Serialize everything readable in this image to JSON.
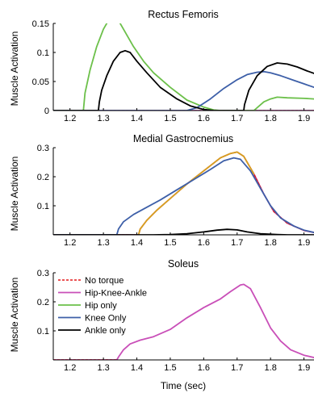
{
  "chart_data": [
    {
      "type": "line",
      "title": "Rectus Femoris",
      "xlabel": "",
      "ylabel": "Muscle Activation",
      "xlim": [
        1.15,
        1.93
      ],
      "ylim": [
        0,
        0.15
      ],
      "xticks": [
        1.2,
        1.3,
        1.4,
        1.5,
        1.6,
        1.7,
        1.8,
        1.9
      ],
      "xtick_labels": [
        "1.2",
        "1.3",
        "1.4",
        "1.5",
        "1.6",
        "1.7",
        "1.8",
        "1.9"
      ],
      "yticks": [
        0,
        0.05,
        0.1,
        0.15
      ],
      "ytick_labels": [
        "0",
        "0.05",
        "0.1",
        "0.15"
      ],
      "series": [
        {
          "name": "No torque",
          "color": "#e31a1c",
          "dash": true,
          "points": [
            [
              1.15,
              0
            ],
            [
              1.93,
              0
            ]
          ]
        },
        {
          "name": "Hip-Knee-Ankle",
          "color": "#c94fb8",
          "dash": false,
          "points": [
            [
              1.15,
              0
            ],
            [
              1.93,
              0
            ]
          ]
        },
        {
          "name": "Hip only",
          "color": "#6cc04a",
          "dash": false,
          "points": [
            [
              1.15,
              0
            ],
            [
              1.24,
              0
            ],
            [
              1.245,
              0.03
            ],
            [
              1.26,
              0.07
            ],
            [
              1.28,
              0.11
            ],
            [
              1.3,
              0.14
            ],
            [
              1.315,
              0.155
            ],
            [
              1.33,
              0.16
            ],
            [
              1.345,
              0.155
            ],
            [
              1.36,
              0.14
            ],
            [
              1.39,
              0.11
            ],
            [
              1.42,
              0.085
            ],
            [
              1.45,
              0.065
            ],
            [
              1.5,
              0.04
            ],
            [
              1.55,
              0.018
            ],
            [
              1.6,
              0.006
            ],
            [
              1.63,
              0.001
            ],
            [
              1.65,
              0
            ],
            [
              1.75,
              0
            ],
            [
              1.76,
              0.005
            ],
            [
              1.78,
              0.015
            ],
            [
              1.8,
              0.02
            ],
            [
              1.82,
              0.023
            ],
            [
              1.85,
              0.022
            ],
            [
              1.9,
              0.021
            ],
            [
              1.93,
              0.02
            ]
          ]
        },
        {
          "name": "Knee Only",
          "color": "#3d5fa8",
          "dash": false,
          "points": [
            [
              1.15,
              0
            ],
            [
              1.55,
              0
            ],
            [
              1.58,
              0.005
            ],
            [
              1.62,
              0.02
            ],
            [
              1.66,
              0.038
            ],
            [
              1.7,
              0.053
            ],
            [
              1.73,
              0.062
            ],
            [
              1.76,
              0.066
            ],
            [
              1.78,
              0.067
            ],
            [
              1.8,
              0.065
            ],
            [
              1.83,
              0.06
            ],
            [
              1.87,
              0.052
            ],
            [
              1.9,
              0.046
            ],
            [
              1.93,
              0.04
            ]
          ]
        },
        {
          "name": "Ankle only",
          "color": "#000000",
          "dash": false,
          "points": [
            [
              1.15,
              0
            ],
            [
              1.285,
              0
            ],
            [
              1.288,
              0.015
            ],
            [
              1.295,
              0.035
            ],
            [
              1.31,
              0.06
            ],
            [
              1.33,
              0.085
            ],
            [
              1.35,
              0.1
            ],
            [
              1.365,
              0.103
            ],
            [
              1.38,
              0.1
            ],
            [
              1.4,
              0.085
            ],
            [
              1.43,
              0.065
            ],
            [
              1.47,
              0.04
            ],
            [
              1.52,
              0.02
            ],
            [
              1.56,
              0.008
            ],
            [
              1.6,
              0.002
            ],
            [
              1.63,
              0
            ],
            [
              1.72,
              0
            ],
            [
              1.722,
              0.01
            ],
            [
              1.735,
              0.035
            ],
            [
              1.76,
              0.06
            ],
            [
              1.79,
              0.076
            ],
            [
              1.82,
              0.082
            ],
            [
              1.85,
              0.08
            ],
            [
              1.88,
              0.075
            ],
            [
              1.91,
              0.068
            ],
            [
              1.93,
              0.064
            ]
          ]
        }
      ]
    },
    {
      "type": "line",
      "title": "Medial Gastrocnemius",
      "xlabel": "",
      "ylabel": "Muscle Activation",
      "xlim": [
        1.15,
        1.93
      ],
      "ylim": [
        0,
        0.3
      ],
      "xticks": [
        1.2,
        1.3,
        1.4,
        1.5,
        1.6,
        1.7,
        1.8,
        1.9
      ],
      "xtick_labels": [
        "1.2",
        "1.3",
        "1.4",
        "1.5",
        "1.6",
        "1.7",
        "1.8",
        "1.9"
      ],
      "yticks": [
        0.1,
        0.2,
        0.3
      ],
      "ytick_labels": [
        "0.1",
        "0.2",
        "0.3"
      ],
      "series": [
        {
          "name": "Hip-Knee-Ankle",
          "color": "#c94fb8",
          "dash": false,
          "points": [
            [
              1.15,
              0
            ],
            [
              1.405,
              0
            ],
            [
              1.41,
              0.02
            ],
            [
              1.43,
              0.05
            ],
            [
              1.46,
              0.085
            ],
            [
              1.5,
              0.125
            ],
            [
              1.55,
              0.175
            ],
            [
              1.6,
              0.22
            ],
            [
              1.65,
              0.265
            ],
            [
              1.68,
              0.28
            ],
            [
              1.7,
              0.285
            ],
            [
              1.72,
              0.27
            ],
            [
              1.75,
              0.21
            ],
            [
              1.78,
              0.14
            ],
            [
              1.81,
              0.08
            ],
            [
              1.85,
              0.04
            ],
            [
              1.9,
              0.015
            ],
            [
              1.93,
              0.008
            ]
          ]
        },
        {
          "name": "No torque",
          "color": "#e31a1c",
          "dash": true,
          "points": [
            [
              1.15,
              0
            ],
            [
              1.405,
              0
            ],
            [
              1.41,
              0.02
            ],
            [
              1.43,
              0.05
            ],
            [
              1.46,
              0.085
            ],
            [
              1.5,
              0.125
            ],
            [
              1.55,
              0.175
            ],
            [
              1.6,
              0.22
            ],
            [
              1.65,
              0.265
            ],
            [
              1.68,
              0.28
            ],
            [
              1.7,
              0.285
            ],
            [
              1.72,
              0.27
            ],
            [
              1.75,
              0.21
            ],
            [
              1.78,
              0.14
            ],
            [
              1.81,
              0.08
            ],
            [
              1.85,
              0.04
            ],
            [
              1.9,
              0.015
            ],
            [
              1.93,
              0.008
            ]
          ]
        },
        {
          "name": "Hip only",
          "color": "#d7a21d",
          "dash": false,
          "points": [
            [
              1.405,
              0
            ],
            [
              1.41,
              0.02
            ],
            [
              1.43,
              0.05
            ],
            [
              1.46,
              0.085
            ],
            [
              1.5,
              0.125
            ],
            [
              1.55,
              0.175
            ],
            [
              1.6,
              0.22
            ],
            [
              1.65,
              0.265
            ],
            [
              1.68,
              0.28
            ],
            [
              1.7,
              0.285
            ],
            [
              1.72,
              0.27
            ],
            [
              1.75,
              0.21
            ]
          ]
        },
        {
          "name": "Knee Only",
          "color": "#3d5fa8",
          "dash": false,
          "points": [
            [
              1.15,
              0
            ],
            [
              1.34,
              0
            ],
            [
              1.345,
              0.02
            ],
            [
              1.36,
              0.045
            ],
            [
              1.39,
              0.07
            ],
            [
              1.43,
              0.095
            ],
            [
              1.47,
              0.12
            ],
            [
              1.52,
              0.155
            ],
            [
              1.57,
              0.19
            ],
            [
              1.62,
              0.225
            ],
            [
              1.66,
              0.255
            ],
            [
              1.69,
              0.265
            ],
            [
              1.71,
              0.26
            ],
            [
              1.74,
              0.22
            ],
            [
              1.77,
              0.16
            ],
            [
              1.8,
              0.1
            ],
            [
              1.83,
              0.058
            ],
            [
              1.87,
              0.03
            ],
            [
              1.9,
              0.016
            ],
            [
              1.93,
              0.008
            ]
          ]
        },
        {
          "name": "Ankle only",
          "color": "#000000",
          "dash": false,
          "points": [
            [
              1.15,
              0
            ],
            [
              1.45,
              0
            ],
            [
              1.5,
              0.001
            ],
            [
              1.55,
              0.004
            ],
            [
              1.6,
              0.01
            ],
            [
              1.64,
              0.016
            ],
            [
              1.67,
              0.019
            ],
            [
              1.7,
              0.017
            ],
            [
              1.73,
              0.01
            ],
            [
              1.77,
              0.004
            ],
            [
              1.82,
              0.001
            ],
            [
              1.85,
              0
            ],
            [
              1.93,
              0
            ]
          ]
        }
      ]
    },
    {
      "type": "line",
      "title": "Soleus",
      "xlabel": "Time (sec)",
      "ylabel": "Muscle Activation",
      "xlim": [
        1.15,
        1.93
      ],
      "ylim": [
        0,
        0.3
      ],
      "xticks": [
        1.2,
        1.3,
        1.4,
        1.5,
        1.6,
        1.7,
        1.8,
        1.9
      ],
      "xtick_labels": [
        "1.2",
        "1.3",
        "1.4",
        "1.5",
        "1.6",
        "1.7",
        "1.8",
        "1.9"
      ],
      "yticks": [
        0.1,
        0.2,
        0.3
      ],
      "ytick_labels": [
        "0.1",
        "0.2",
        "0.3"
      ],
      "legend": [
        {
          "label": "No torque",
          "color": "#e31a1c",
          "dash": true
        },
        {
          "label": "Hip-Knee-Ankle",
          "color": "#c94fb8",
          "dash": false
        },
        {
          "label": "Hip only",
          "color": "#6cc04a",
          "dash": false
        },
        {
          "label": "Knee Only",
          "color": "#3d5fa8",
          "dash": false
        },
        {
          "label": "Ankle only",
          "color": "#000000",
          "dash": false
        }
      ],
      "legend_position": "top-left",
      "series": [
        {
          "name": "Hip-Knee-Ankle",
          "color": "#c94fb8",
          "dash": false,
          "points": [
            [
              1.15,
              0
            ],
            [
              1.34,
              0
            ],
            [
              1.345,
              0.01
            ],
            [
              1.36,
              0.035
            ],
            [
              1.38,
              0.055
            ],
            [
              1.41,
              0.068
            ],
            [
              1.45,
              0.08
            ],
            [
              1.5,
              0.105
            ],
            [
              1.55,
              0.145
            ],
            [
              1.6,
              0.18
            ],
            [
              1.65,
              0.21
            ],
            [
              1.68,
              0.235
            ],
            [
              1.71,
              0.258
            ],
            [
              1.72,
              0.26
            ],
            [
              1.74,
              0.245
            ],
            [
              1.77,
              0.18
            ],
            [
              1.8,
              0.11
            ],
            [
              1.83,
              0.065
            ],
            [
              1.86,
              0.035
            ],
            [
              1.9,
              0.016
            ],
            [
              1.93,
              0.008
            ]
          ]
        },
        {
          "name": "No torque",
          "color": "#e31a1c",
          "dash": true,
          "points": [
            [
              1.15,
              0
            ],
            [
              1.34,
              0
            ]
          ]
        }
      ]
    }
  ]
}
